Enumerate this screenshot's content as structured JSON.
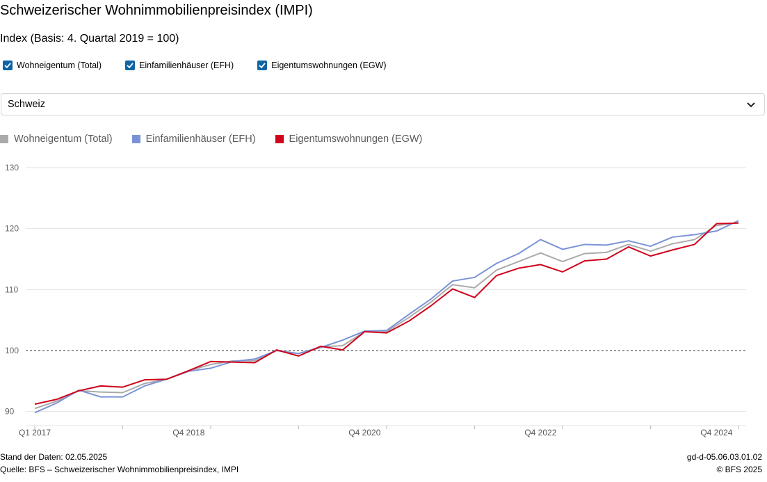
{
  "title": "Schweizerischer Wohnimmobilienpreisindex (IMPI)",
  "subtitle": "Index (Basis: 4. Quartal 2019 = 100)",
  "filters": [
    {
      "label": "Wohneigentum (Total)",
      "checked": true
    },
    {
      "label": "Einfamilienhäuser (EFH)",
      "checked": true
    },
    {
      "label": "Eigentumswohnungen (EGW)",
      "checked": true
    }
  ],
  "region_select": {
    "value": "Schweiz"
  },
  "footer": {
    "stand": "Stand der Daten: 02.05.2025",
    "quelle": "Quelle: BFS – Schweizerischer Wohnimmobilienpreisindex, IMPI",
    "code": "gd-d-05.06.03.01.02",
    "copyright": "© BFS 2025"
  },
  "chart_data": {
    "type": "line",
    "x": [
      "Q1 2017",
      "Q2 2017",
      "Q3 2017",
      "Q4 2017",
      "Q1 2018",
      "Q2 2018",
      "Q3 2018",
      "Q4 2018",
      "Q1 2019",
      "Q2 2019",
      "Q3 2019",
      "Q4 2019",
      "Q1 2020",
      "Q2 2020",
      "Q3 2020",
      "Q4 2020",
      "Q1 2021",
      "Q2 2021",
      "Q3 2021",
      "Q4 2021",
      "Q1 2022",
      "Q2 2022",
      "Q3 2022",
      "Q4 2022",
      "Q1 2023",
      "Q2 2023",
      "Q3 2023",
      "Q4 2023",
      "Q1 2024",
      "Q2 2024",
      "Q3 2024",
      "Q4 2024",
      "Q1 2025"
    ],
    "tick_labels": [
      "Q1 2017",
      "Q4 2018",
      "Q4 2020",
      "Q4 2022",
      "Q4 2024"
    ],
    "tick_label_indices": [
      0,
      7,
      15,
      23,
      31
    ],
    "ylim": [
      89,
      130
    ],
    "yticks": [
      90,
      100,
      110,
      120,
      130
    ],
    "reference_line": 100,
    "grid": true,
    "legend_position": "top-left",
    "series": [
      {
        "name": "Wohneigentum (Total)",
        "color": "#aaaaaa",
        "values": [
          90.5,
          91.7,
          93.4,
          93.2,
          93.1,
          94.6,
          95.3,
          96.7,
          97.7,
          98.3,
          98.3,
          100.0,
          99.5,
          100.6,
          100.8,
          103.1,
          103.1,
          105.4,
          107.9,
          110.8,
          110.3,
          113.2,
          114.6,
          116.0,
          114.6,
          115.9,
          116.1,
          117.4,
          116.3,
          117.5,
          118.2,
          120.5,
          121.0
        ]
      },
      {
        "name": "Einfamilienhäuser (EFH)",
        "color": "#7b93d6",
        "values": [
          89.8,
          91.4,
          93.5,
          92.4,
          92.4,
          94.2,
          95.3,
          96.6,
          97.1,
          98.2,
          98.6,
          100.0,
          99.5,
          100.5,
          101.7,
          103.2,
          103.3,
          105.9,
          108.4,
          111.4,
          112.0,
          114.3,
          115.9,
          118.2,
          116.6,
          117.4,
          117.3,
          118.0,
          117.1,
          118.6,
          119.0,
          119.6,
          121.3
        ]
      },
      {
        "name": "Eigentumswohnungen (EGW)",
        "color": "#d0021b",
        "values": [
          91.2,
          92.0,
          93.4,
          94.2,
          94.0,
          95.2,
          95.3,
          96.7,
          98.2,
          98.1,
          98.0,
          100.1,
          99.1,
          100.7,
          100.1,
          103.1,
          102.9,
          104.8,
          107.3,
          110.1,
          108.7,
          112.3,
          113.5,
          114.1,
          112.9,
          114.7,
          115.0,
          117.0,
          115.5,
          116.5,
          117.4,
          120.8,
          120.9
        ]
      }
    ]
  }
}
